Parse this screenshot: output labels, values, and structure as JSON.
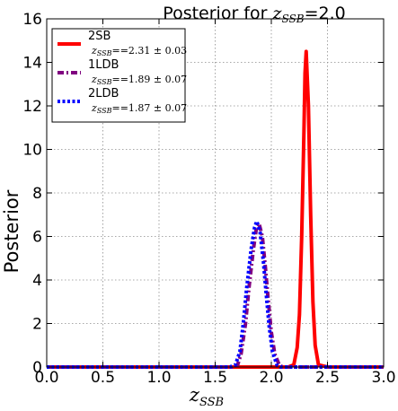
{
  "chart_data": {
    "type": "line",
    "title_prefix": "Posterior for ",
    "title_var": "z",
    "title_sub": "SSB",
    "title_value": "=2.0",
    "ylabel": "Posterior",
    "xlabel_var": "z",
    "xlabel_sub": "SSB",
    "xlim": [
      0.0,
      3.0
    ],
    "ylim": [
      0,
      16
    ],
    "x_ticks": [
      "0.0",
      "0.5",
      "1.0",
      "1.5",
      "2.0",
      "2.5",
      "3.0"
    ],
    "y_ticks": [
      "0",
      "2",
      "4",
      "6",
      "8",
      "10",
      "12",
      "14",
      "16"
    ],
    "grid": true,
    "legend_position": "top-left",
    "series": [
      {
        "name": "2SB",
        "stat": "==2.31 ± 0.03",
        "color": "#ff0000",
        "style": "solid",
        "x": [
          0.0,
          2.15,
          2.2,
          2.23,
          2.25,
          2.27,
          2.29,
          2.3,
          2.31,
          2.33,
          2.35,
          2.37,
          2.39,
          2.42,
          2.5,
          3.0
        ],
        "y": [
          0,
          0,
          0.1,
          0.9,
          2.4,
          6.0,
          10.8,
          13.5,
          14.5,
          12.0,
          7.0,
          3.0,
          1.0,
          0.1,
          0,
          0
        ]
      },
      {
        "name": "1LDB",
        "stat": "==1.89 ± 0.07",
        "color": "#800080",
        "style": "dashdot",
        "x": [
          0.0,
          1.65,
          1.7,
          1.73,
          1.77,
          1.8,
          1.84,
          1.87,
          1.89,
          1.92,
          1.95,
          1.97,
          2.0,
          2.03,
          2.07,
          2.1,
          3.0
        ],
        "y": [
          0,
          0,
          0.1,
          0.6,
          2.0,
          3.6,
          5.4,
          6.5,
          6.6,
          6.0,
          4.4,
          3.2,
          1.6,
          0.6,
          0.1,
          0,
          0
        ]
      },
      {
        "name": "2LDB",
        "stat": "==1.87 ± 0.07",
        "color": "#0000ff",
        "style": "dotted",
        "x": [
          0.0,
          1.63,
          1.68,
          1.72,
          1.75,
          1.78,
          1.82,
          1.85,
          1.87,
          1.9,
          1.93,
          1.95,
          1.98,
          2.01,
          2.05,
          2.08,
          3.0
        ],
        "y": [
          0,
          0,
          0.1,
          0.7,
          2.0,
          3.6,
          5.4,
          6.4,
          6.7,
          6.2,
          4.8,
          3.6,
          1.9,
          0.7,
          0.1,
          0,
          0
        ]
      }
    ]
  }
}
